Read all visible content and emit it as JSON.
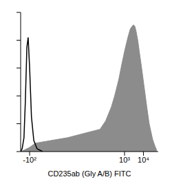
{
  "chart_data": {
    "type": "histogram",
    "x_label": "CD235ab (Gly A/B) FITC",
    "log": "x",
    "grid": false,
    "tick_labels": "x",
    "xlim": [
      -300,
      60000
    ],
    "xticks": [
      {
        "value": -100,
        "label": "-10²"
      },
      {
        "value": 1000,
        "label": "10³"
      },
      {
        "value": 10000,
        "label": "10⁴"
      }
    ],
    "ylim": [
      0,
      100
    ],
    "yticks": [
      0,
      20,
      40,
      60,
      80,
      100
    ],
    "series": [
      {
        "type": "area",
        "color": "#8c8c8c",
        "x": [
          -300,
          -200,
          -100,
          -50,
          0,
          50,
          100,
          200,
          300,
          500,
          700,
          1000,
          1500,
          2000,
          2500,
          3000,
          3500,
          4000,
          5000,
          6000,
          8000,
          10000,
          15000,
          20000,
          30000,
          40000,
          50000
        ],
        "values": [
          0,
          1,
          3,
          6,
          10,
          16,
          22,
          32,
          40,
          52,
          62,
          72,
          82,
          88,
          90,
          91,
          90,
          87,
          80,
          72,
          60,
          50,
          32,
          20,
          9,
          4,
          1
        ]
      },
      {
        "type": "line",
        "color": "#000000",
        "x": [
          -300,
          -250,
          -200,
          -170,
          -140,
          -120,
          -100,
          -80,
          -60,
          -40,
          -20
        ],
        "values": [
          0,
          2,
          10,
          35,
          75,
          82,
          60,
          25,
          8,
          2,
          0
        ]
      }
    ]
  }
}
